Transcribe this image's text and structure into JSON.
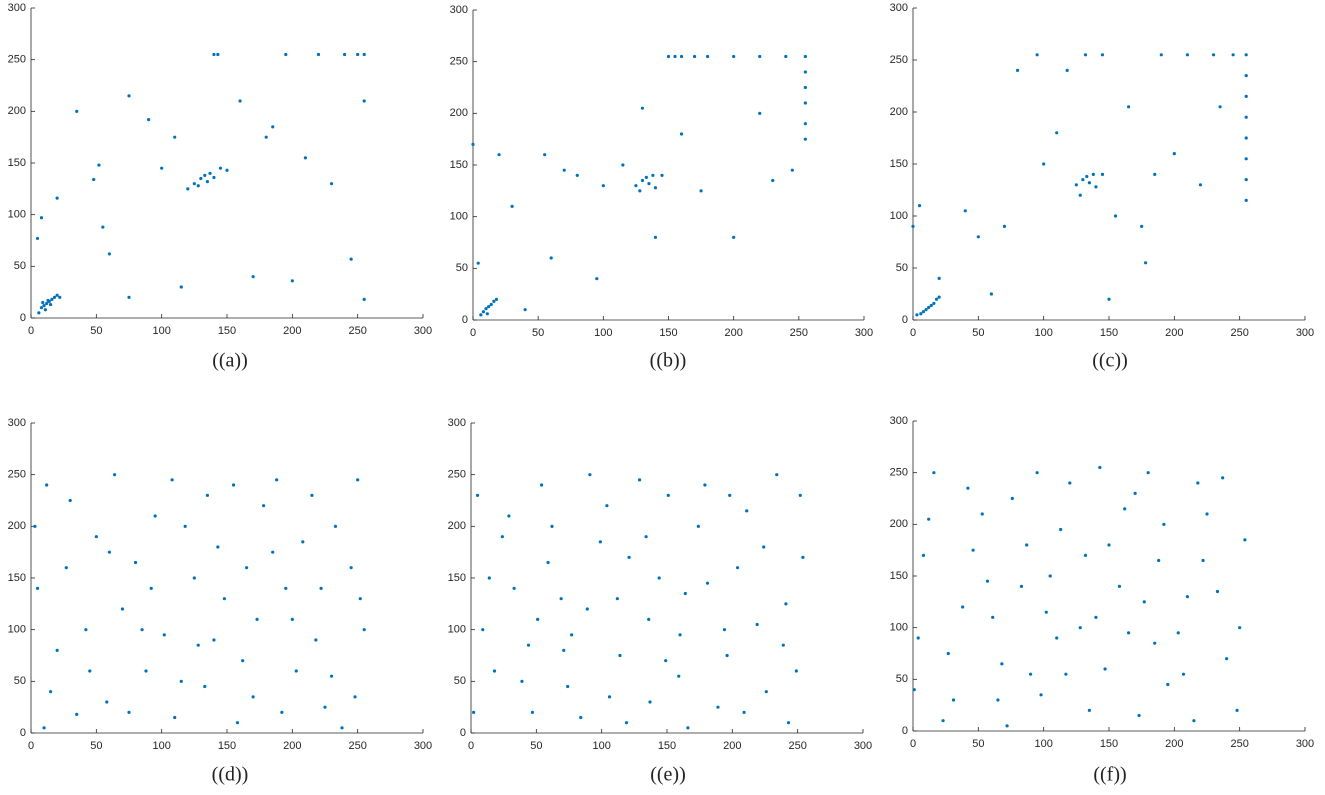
{
  "chart_data": [
    {
      "type": "scatter",
      "caption": "((a))",
      "color": "#0072bd",
      "xlim": [
        0,
        300
      ],
      "ylim": [
        0,
        300
      ],
      "xticks": [
        0,
        50,
        100,
        150,
        200,
        250,
        300
      ],
      "yticks": [
        0,
        50,
        100,
        150,
        200,
        250,
        300
      ],
      "x": [
        8,
        10,
        12,
        14,
        16,
        18,
        20,
        11,
        15,
        6,
        22,
        13,
        9,
        5,
        8,
        20,
        35,
        48,
        52,
        55,
        60,
        75,
        90,
        100,
        110,
        120,
        125,
        130,
        133,
        135,
        137,
        140,
        128,
        145,
        150,
        143,
        140,
        160,
        170,
        185,
        195,
        200,
        210,
        220,
        230,
        240,
        250,
        255,
        255,
        255,
        245,
        180,
        115,
        75
      ],
      "values": [
        10,
        12,
        14,
        16,
        18,
        20,
        22,
        8,
        13,
        5,
        20,
        17,
        15,
        77,
        97,
        116,
        200,
        134,
        148,
        88,
        62,
        215,
        192,
        145,
        175,
        125,
        130,
        135,
        138,
        132,
        140,
        136,
        128,
        145,
        143,
        255,
        255,
        210,
        40,
        185,
        255,
        36,
        155,
        255,
        130,
        255,
        255,
        255,
        18,
        210,
        57,
        175,
        30,
        20
      ]
    },
    {
      "type": "scatter",
      "caption": "((b))",
      "color": "#0072bd",
      "xlim": [
        0,
        300
      ],
      "ylim": [
        0,
        300
      ],
      "xticks": [
        0,
        50,
        100,
        150,
        200,
        250,
        300
      ],
      "yticks": [
        0,
        50,
        100,
        150,
        200,
        250,
        300
      ],
      "x": [
        8,
        10,
        12,
        14,
        16,
        18,
        11,
        6,
        4,
        0,
        20,
        40,
        55,
        70,
        80,
        100,
        115,
        125,
        130,
        133,
        135,
        138,
        140,
        128,
        145,
        140,
        130,
        150,
        155,
        160,
        170,
        180,
        200,
        220,
        240,
        255,
        255,
        255,
        255,
        255,
        255,
        200,
        220,
        230,
        175,
        160,
        95,
        60,
        30,
        245
      ],
      "values": [
        8,
        11,
        13,
        15,
        18,
        20,
        6,
        5,
        55,
        170,
        160,
        10,
        160,
        145,
        140,
        130,
        150,
        130,
        135,
        138,
        132,
        140,
        128,
        125,
        140,
        80,
        205,
        255,
        255,
        255,
        255,
        255,
        255,
        255,
        255,
        255,
        240,
        225,
        210,
        190,
        175,
        80,
        200,
        135,
        125,
        180,
        40,
        60,
        110,
        145
      ]
    },
    {
      "type": "scatter",
      "caption": "((c))",
      "color": "#0072bd",
      "xlim": [
        0,
        300
      ],
      "ylim": [
        0,
        300
      ],
      "xticks": [
        0,
        50,
        100,
        150,
        200,
        250,
        300
      ],
      "yticks": [
        0,
        50,
        100,
        150,
        200,
        250,
        300
      ],
      "x": [
        8,
        10,
        12,
        14,
        16,
        18,
        20,
        6,
        3,
        0,
        5,
        20,
        40,
        50,
        60,
        70,
        80,
        95,
        100,
        110,
        118,
        125,
        130,
        133,
        135,
        138,
        140,
        128,
        145,
        132,
        145,
        150,
        155,
        175,
        178,
        190,
        210,
        230,
        245,
        255,
        255,
        255,
        255,
        255,
        255,
        255,
        255,
        220,
        200,
        235,
        185,
        165
      ],
      "values": [
        8,
        10,
        12,
        14,
        16,
        20,
        22,
        6,
        5,
        90,
        110,
        40,
        105,
        80,
        25,
        90,
        240,
        255,
        150,
        180,
        240,
        130,
        135,
        138,
        132,
        140,
        128,
        120,
        140,
        255,
        255,
        20,
        100,
        90,
        55,
        255,
        255,
        255,
        255,
        255,
        235,
        215,
        195,
        175,
        155,
        135,
        115,
        130,
        160,
        205,
        140,
        205
      ]
    },
    {
      "type": "scatter",
      "caption": "((d))",
      "color": "#0072bd",
      "xlim": [
        0,
        300
      ],
      "ylim": [
        0,
        300
      ],
      "xticks": [
        0,
        50,
        100,
        150,
        200,
        250,
        300
      ],
      "yticks": [
        0,
        50,
        100,
        150,
        200,
        250,
        300
      ],
      "x": [
        12,
        35,
        50,
        70,
        88,
        95,
        110,
        125,
        140,
        155,
        170,
        185,
        200,
        215,
        230,
        245,
        255,
        5,
        20,
        42,
        58,
        64,
        80,
        102,
        118,
        133,
        148,
        162,
        178,
        192,
        208,
        222,
        238,
        250,
        3,
        27,
        45,
        75,
        92,
        108,
        128,
        143,
        158,
        173,
        188,
        203,
        218,
        233,
        248,
        15,
        30,
        60,
        85,
        115,
        135,
        165,
        195,
        225,
        252,
        10
      ],
      "values": [
        240,
        18,
        190,
        120,
        60,
        210,
        15,
        150,
        90,
        240,
        35,
        175,
        110,
        230,
        55,
        160,
        100,
        140,
        80,
        100,
        30,
        250,
        165,
        95,
        200,
        45,
        130,
        70,
        220,
        20,
        185,
        140,
        5,
        245,
        200,
        160,
        60,
        20,
        140,
        245,
        85,
        180,
        10,
        110,
        245,
        60,
        90,
        200,
        35,
        40,
        225,
        175,
        100,
        50,
        230,
        160,
        140,
        25,
        130,
        5
      ]
    },
    {
      "type": "scatter",
      "caption": "((e))",
      "color": "#0072bd",
      "xlim": [
        0,
        300
      ],
      "ylim": [
        0,
        300
      ],
      "xticks": [
        0,
        50,
        100,
        150,
        200,
        250,
        300
      ],
      "yticks": [
        0,
        50,
        100,
        150,
        200,
        250,
        300
      ],
      "x": [
        5,
        18,
        33,
        47,
        62,
        77,
        91,
        106,
        121,
        136,
        151,
        166,
        181,
        196,
        211,
        226,
        241,
        254,
        9,
        24,
        39,
        54,
        69,
        84,
        99,
        114,
        129,
        144,
        159,
        174,
        189,
        204,
        219,
        234,
        249,
        2,
        14,
        29,
        44,
        59,
        74,
        89,
        104,
        119,
        134,
        149,
        164,
        179,
        194,
        209,
        224,
        239,
        252,
        71,
        137,
        198,
        112,
        51,
        243,
        160
      ],
      "values": [
        230,
        60,
        140,
        20,
        200,
        95,
        250,
        35,
        170,
        110,
        230,
        5,
        145,
        75,
        215,
        40,
        125,
        170,
        100,
        190,
        50,
        240,
        130,
        15,
        185,
        75,
        245,
        150,
        55,
        200,
        25,
        160,
        105,
        250,
        60,
        20,
        150,
        210,
        85,
        165,
        45,
        120,
        220,
        10,
        190,
        70,
        135,
        240,
        100,
        20,
        180,
        85,
        230,
        80,
        30,
        230,
        130,
        110,
        10,
        95
      ]
    },
    {
      "type": "scatter",
      "caption": "((f))",
      "color": "#0072bd",
      "xlim": [
        0,
        300
      ],
      "ylim": [
        0,
        300
      ],
      "xticks": [
        0,
        50,
        100,
        150,
        200,
        250,
        300
      ],
      "yticks": [
        0,
        50,
        100,
        150,
        200,
        250,
        300
      ],
      "x": [
        4,
        16,
        31,
        46,
        61,
        76,
        90,
        105,
        120,
        135,
        150,
        165,
        180,
        195,
        210,
        225,
        240,
        254,
        8,
        23,
        38,
        53,
        68,
        83,
        98,
        113,
        128,
        143,
        158,
        173,
        188,
        203,
        218,
        233,
        248,
        1,
        12,
        27,
        42,
        57,
        72,
        87,
        102,
        117,
        132,
        147,
        162,
        177,
        192,
        207,
        222,
        237,
        250,
        65,
        95,
        140,
        185,
        215,
        110,
        170
      ],
      "values": [
        90,
        250,
        30,
        175,
        110,
        225,
        55,
        150,
        240,
        20,
        180,
        95,
        250,
        45,
        130,
        210,
        70,
        185,
        170,
        10,
        120,
        210,
        65,
        140,
        35,
        195,
        100,
        255,
        140,
        15,
        165,
        95,
        240,
        135,
        20,
        40,
        205,
        75,
        235,
        145,
        5,
        180,
        115,
        55,
        170,
        60,
        215,
        125,
        200,
        55,
        165,
        245,
        100,
        30,
        250,
        110,
        85,
        10,
        90,
        230
      ]
    }
  ]
}
